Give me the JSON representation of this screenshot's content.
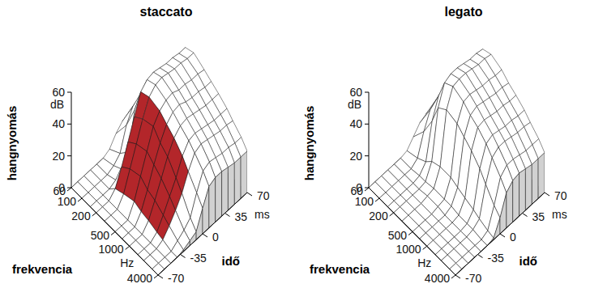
{
  "chart_data": [
    {
      "type": "waterfall",
      "title": "staccato",
      "x_label": "frekvencia",
      "x_unit": "Hz",
      "y_label": "idő",
      "y_unit": "ms",
      "z_label": "hangnyomás",
      "z_unit": "dB",
      "log": "x",
      "x": [
        60,
        100,
        150,
        200,
        300,
        500,
        700,
        1000,
        1500,
        2000,
        3000,
        4000
      ],
      "y": [
        -70,
        -60,
        -50,
        -40,
        -30,
        -20,
        -10,
        0,
        10,
        20,
        30,
        40,
        50,
        60,
        70
      ],
      "xlim": [
        60,
        4000
      ],
      "xticks": [
        60,
        100,
        200,
        500,
        1000,
        4000
      ],
      "ylim": [
        -70,
        70
      ],
      "yticks": [
        -70,
        -35,
        0,
        35,
        70
      ],
      "zlim": [
        0,
        60
      ],
      "zticks": [
        0,
        20,
        40,
        60
      ],
      "series": [
        {
          "color": "#ffffff",
          "values": [
            [
              0,
              0,
              0,
              0,
              0,
              0,
              2,
              8,
              12,
              14,
              14,
              13,
              13,
              12,
              12
            ],
            [
              0,
              0,
              0,
              0,
              0,
              2,
              6,
              20,
              28,
              30,
              30,
              29,
              28,
              28,
              27
            ],
            [
              0,
              0,
              0,
              0,
              2,
              5,
              12,
              35,
              42,
              44,
              43,
              42,
              42,
              41,
              41
            ],
            [
              0,
              0,
              0,
              4,
              14,
              26,
              38,
              50,
              54,
              55,
              54,
              53,
              53,
              52,
              52
            ],
            [
              0,
              0,
              0,
              6,
              18,
              30,
              42,
              52,
              56,
              57,
              56,
              55,
              55,
              54,
              54
            ],
            [
              0,
              0,
              0,
              8,
              20,
              32,
              44,
              50,
              53,
              54,
              52,
              52,
              51,
              51,
              50
            ],
            [
              0,
              0,
              0,
              6,
              16,
              28,
              38,
              46,
              50,
              51,
              49,
              48,
              48,
              47,
              47
            ],
            [
              0,
              0,
              0,
              5,
              14,
              24,
              34,
              42,
              46,
              47,
              46,
              45,
              44,
              44,
              44
            ],
            [
              0,
              0,
              0,
              3,
              10,
              18,
              26,
              36,
              42,
              43,
              42,
              41,
              40,
              40,
              40
            ],
            [
              0,
              0,
              0,
              2,
              7,
              13,
              20,
              30,
              38,
              40,
              39,
              38,
              37,
              37,
              36
            ],
            [
              0,
              0,
              0,
              0,
              3,
              6,
              10,
              22,
              32,
              34,
              33,
              32,
              32,
              31,
              31
            ],
            [
              0,
              0,
              0,
              0,
              1,
              3,
              5,
              16,
              26,
              28,
              28,
              27,
              26,
              26,
              26
            ]
          ]
        },
        {
          "color": "#b3262a",
          "values": [
            [
              null,
              null,
              null,
              null,
              null,
              null,
              null,
              null,
              null,
              null,
              null,
              null,
              null,
              null,
              null
            ],
            [
              null,
              null,
              null,
              null,
              null,
              null,
              null,
              null,
              null,
              null,
              null,
              null,
              null,
              null,
              null
            ],
            [
              null,
              null,
              null,
              null,
              null,
              null,
              null,
              null,
              null,
              null,
              null,
              null,
              null,
              null,
              null
            ],
            [
              null,
              null,
              null,
              4,
              14,
              26,
              38,
              50,
              null,
              null,
              null,
              null,
              null,
              null,
              null
            ],
            [
              null,
              null,
              null,
              6,
              18,
              30,
              42,
              52,
              null,
              null,
              null,
              null,
              null,
              null,
              null
            ],
            [
              null,
              null,
              null,
              8,
              20,
              32,
              44,
              50,
              null,
              null,
              null,
              null,
              null,
              null,
              null
            ],
            [
              null,
              null,
              null,
              6,
              16,
              28,
              38,
              46,
              null,
              null,
              null,
              null,
              null,
              null,
              null
            ],
            [
              null,
              null,
              null,
              5,
              14,
              24,
              34,
              42,
              null,
              null,
              null,
              null,
              null,
              null,
              null
            ],
            [
              null,
              null,
              null,
              3,
              10,
              18,
              26,
              36,
              null,
              null,
              null,
              null,
              null,
              null,
              null
            ],
            [
              null,
              null,
              null,
              2,
              7,
              13,
              20,
              30,
              null,
              null,
              null,
              null,
              null,
              null,
              null
            ],
            [
              null,
              null,
              null,
              null,
              null,
              null,
              null,
              null,
              null,
              null,
              null,
              null,
              null,
              null,
              null
            ],
            [
              null,
              null,
              null,
              null,
              null,
              null,
              null,
              null,
              null,
              null,
              null,
              null,
              null,
              null,
              null
            ]
          ]
        }
      ]
    },
    {
      "type": "waterfall",
      "title": "legato",
      "x_label": "frekvencia",
      "x_unit": "Hz",
      "y_label": "idő",
      "y_unit": "ms",
      "z_label": "hangnyomás",
      "z_unit": "dB",
      "log": "x",
      "x": [
        60,
        100,
        150,
        200,
        300,
        500,
        700,
        1000,
        1500,
        2000,
        3000,
        4000
      ],
      "y": [
        -70,
        -60,
        -50,
        -40,
        -30,
        -20,
        -10,
        0,
        10,
        20,
        30,
        40,
        50,
        60,
        70
      ],
      "xlim": [
        60,
        4000
      ],
      "xticks": [
        60,
        100,
        200,
        500,
        1000,
        4000
      ],
      "ylim": [
        -70,
        70
      ],
      "yticks": [
        -70,
        -35,
        0,
        35,
        70
      ],
      "zlim": [
        0,
        60
      ],
      "zticks": [
        0,
        20,
        40,
        60
      ],
      "series": [
        {
          "color": "#ffffff",
          "values": [
            [
              0,
              0,
              0,
              0,
              0,
              0,
              1,
              6,
              11,
              13,
              14,
              13,
              13,
              12,
              12
            ],
            [
              0,
              0,
              0,
              0,
              0,
              0,
              3,
              16,
              26,
              29,
              30,
              29,
              28,
              28,
              27
            ],
            [
              0,
              0,
              0,
              0,
              0,
              1,
              6,
              28,
              40,
              43,
              43,
              42,
              41,
              41,
              40
            ],
            [
              0,
              0,
              0,
              0,
              0,
              1,
              10,
              40,
              52,
              54,
              54,
              53,
              52,
              52,
              51
            ],
            [
              0,
              0,
              0,
              0,
              1,
              2,
              12,
              44,
              55,
              56,
              56,
              55,
              54,
              54,
              53
            ],
            [
              0,
              0,
              0,
              0,
              1,
              2,
              12,
              42,
              52,
              53,
              52,
              51,
              51,
              50,
              50
            ],
            [
              0,
              0,
              0,
              0,
              0,
              2,
              10,
              38,
              48,
              50,
              49,
              48,
              47,
              47,
              46
            ],
            [
              0,
              0,
              0,
              0,
              0,
              1,
              8,
              34,
              45,
              46,
              45,
              44,
              44,
              43,
              43
            ],
            [
              0,
              0,
              0,
              0,
              0,
              1,
              6,
              28,
              40,
              42,
              41,
              40,
              40,
              39,
              39
            ],
            [
              0,
              0,
              0,
              0,
              0,
              1,
              4,
              22,
              35,
              38,
              38,
              37,
              36,
              36,
              35
            ],
            [
              0,
              0,
              0,
              0,
              0,
              0,
              2,
              14,
              28,
              32,
              32,
              31,
              30,
              30,
              30
            ],
            [
              0,
              0,
              0,
              0,
              0,
              0,
              1,
              10,
              22,
              26,
              27,
              26,
              25,
              25,
              25
            ]
          ]
        }
      ]
    }
  ]
}
